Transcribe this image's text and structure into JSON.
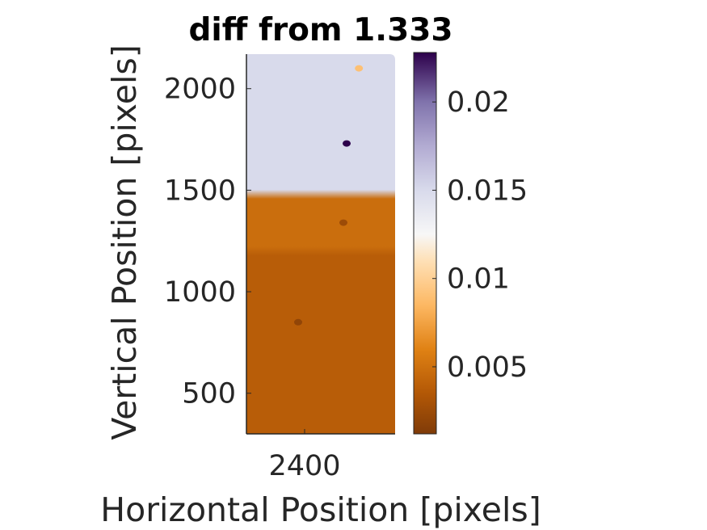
{
  "chart_data": {
    "type": "heatmap",
    "title": "diff from 1.333",
    "xlabel": "Horizontal Position [pixels]",
    "ylabel": "Vertical Position [pixels]",
    "xlim": [
      2310,
      2540
    ],
    "ylim": [
      300,
      2170
    ],
    "x_ticks": [
      2400
    ],
    "x_tick_labels": [
      "2400"
    ],
    "y_ticks": [
      500,
      1000,
      1500,
      2000
    ],
    "y_tick_labels": [
      "500",
      "1000",
      "1500",
      "2000"
    ],
    "colormap": "PuOr",
    "colorbar": {
      "range": [
        0.0012,
        0.0228
      ],
      "ticks": [
        0.005,
        0.01,
        0.015,
        0.02
      ],
      "tick_labels": [
        "0.005",
        "0.01",
        "0.015",
        "0.02"
      ],
      "stops": [
        {
          "value": 0.0012,
          "color": "#7f3b08"
        },
        {
          "value": 0.0035,
          "color": "#b35806"
        },
        {
          "value": 0.006,
          "color": "#e08214"
        },
        {
          "value": 0.0085,
          "color": "#fdb863"
        },
        {
          "value": 0.011,
          "color": "#fee0b6"
        },
        {
          "value": 0.0125,
          "color": "#f7f7f7"
        },
        {
          "value": 0.015,
          "color": "#d8daeb"
        },
        {
          "value": 0.0175,
          "color": "#b2abd2"
        },
        {
          "value": 0.02,
          "color": "#8073ac"
        },
        {
          "value": 0.0228,
          "color": "#2d004b"
        }
      ]
    },
    "regions": [
      {
        "y_range": [
          1480,
          2170
        ],
        "value": 0.015
      },
      {
        "y_range": [
          1200,
          1480
        ],
        "value": 0.0048
      },
      {
        "y_range": [
          300,
          1200
        ],
        "value": 0.0038
      }
    ],
    "spots": [
      {
        "x": 2465,
        "y": 1730,
        "value": 0.0228
      },
      {
        "x": 2484,
        "y": 2100,
        "value": 0.009
      },
      {
        "x": 2390,
        "y": 850,
        "value": 0.002
      },
      {
        "x": 2460,
        "y": 1340,
        "value": 0.0025
      }
    ]
  }
}
